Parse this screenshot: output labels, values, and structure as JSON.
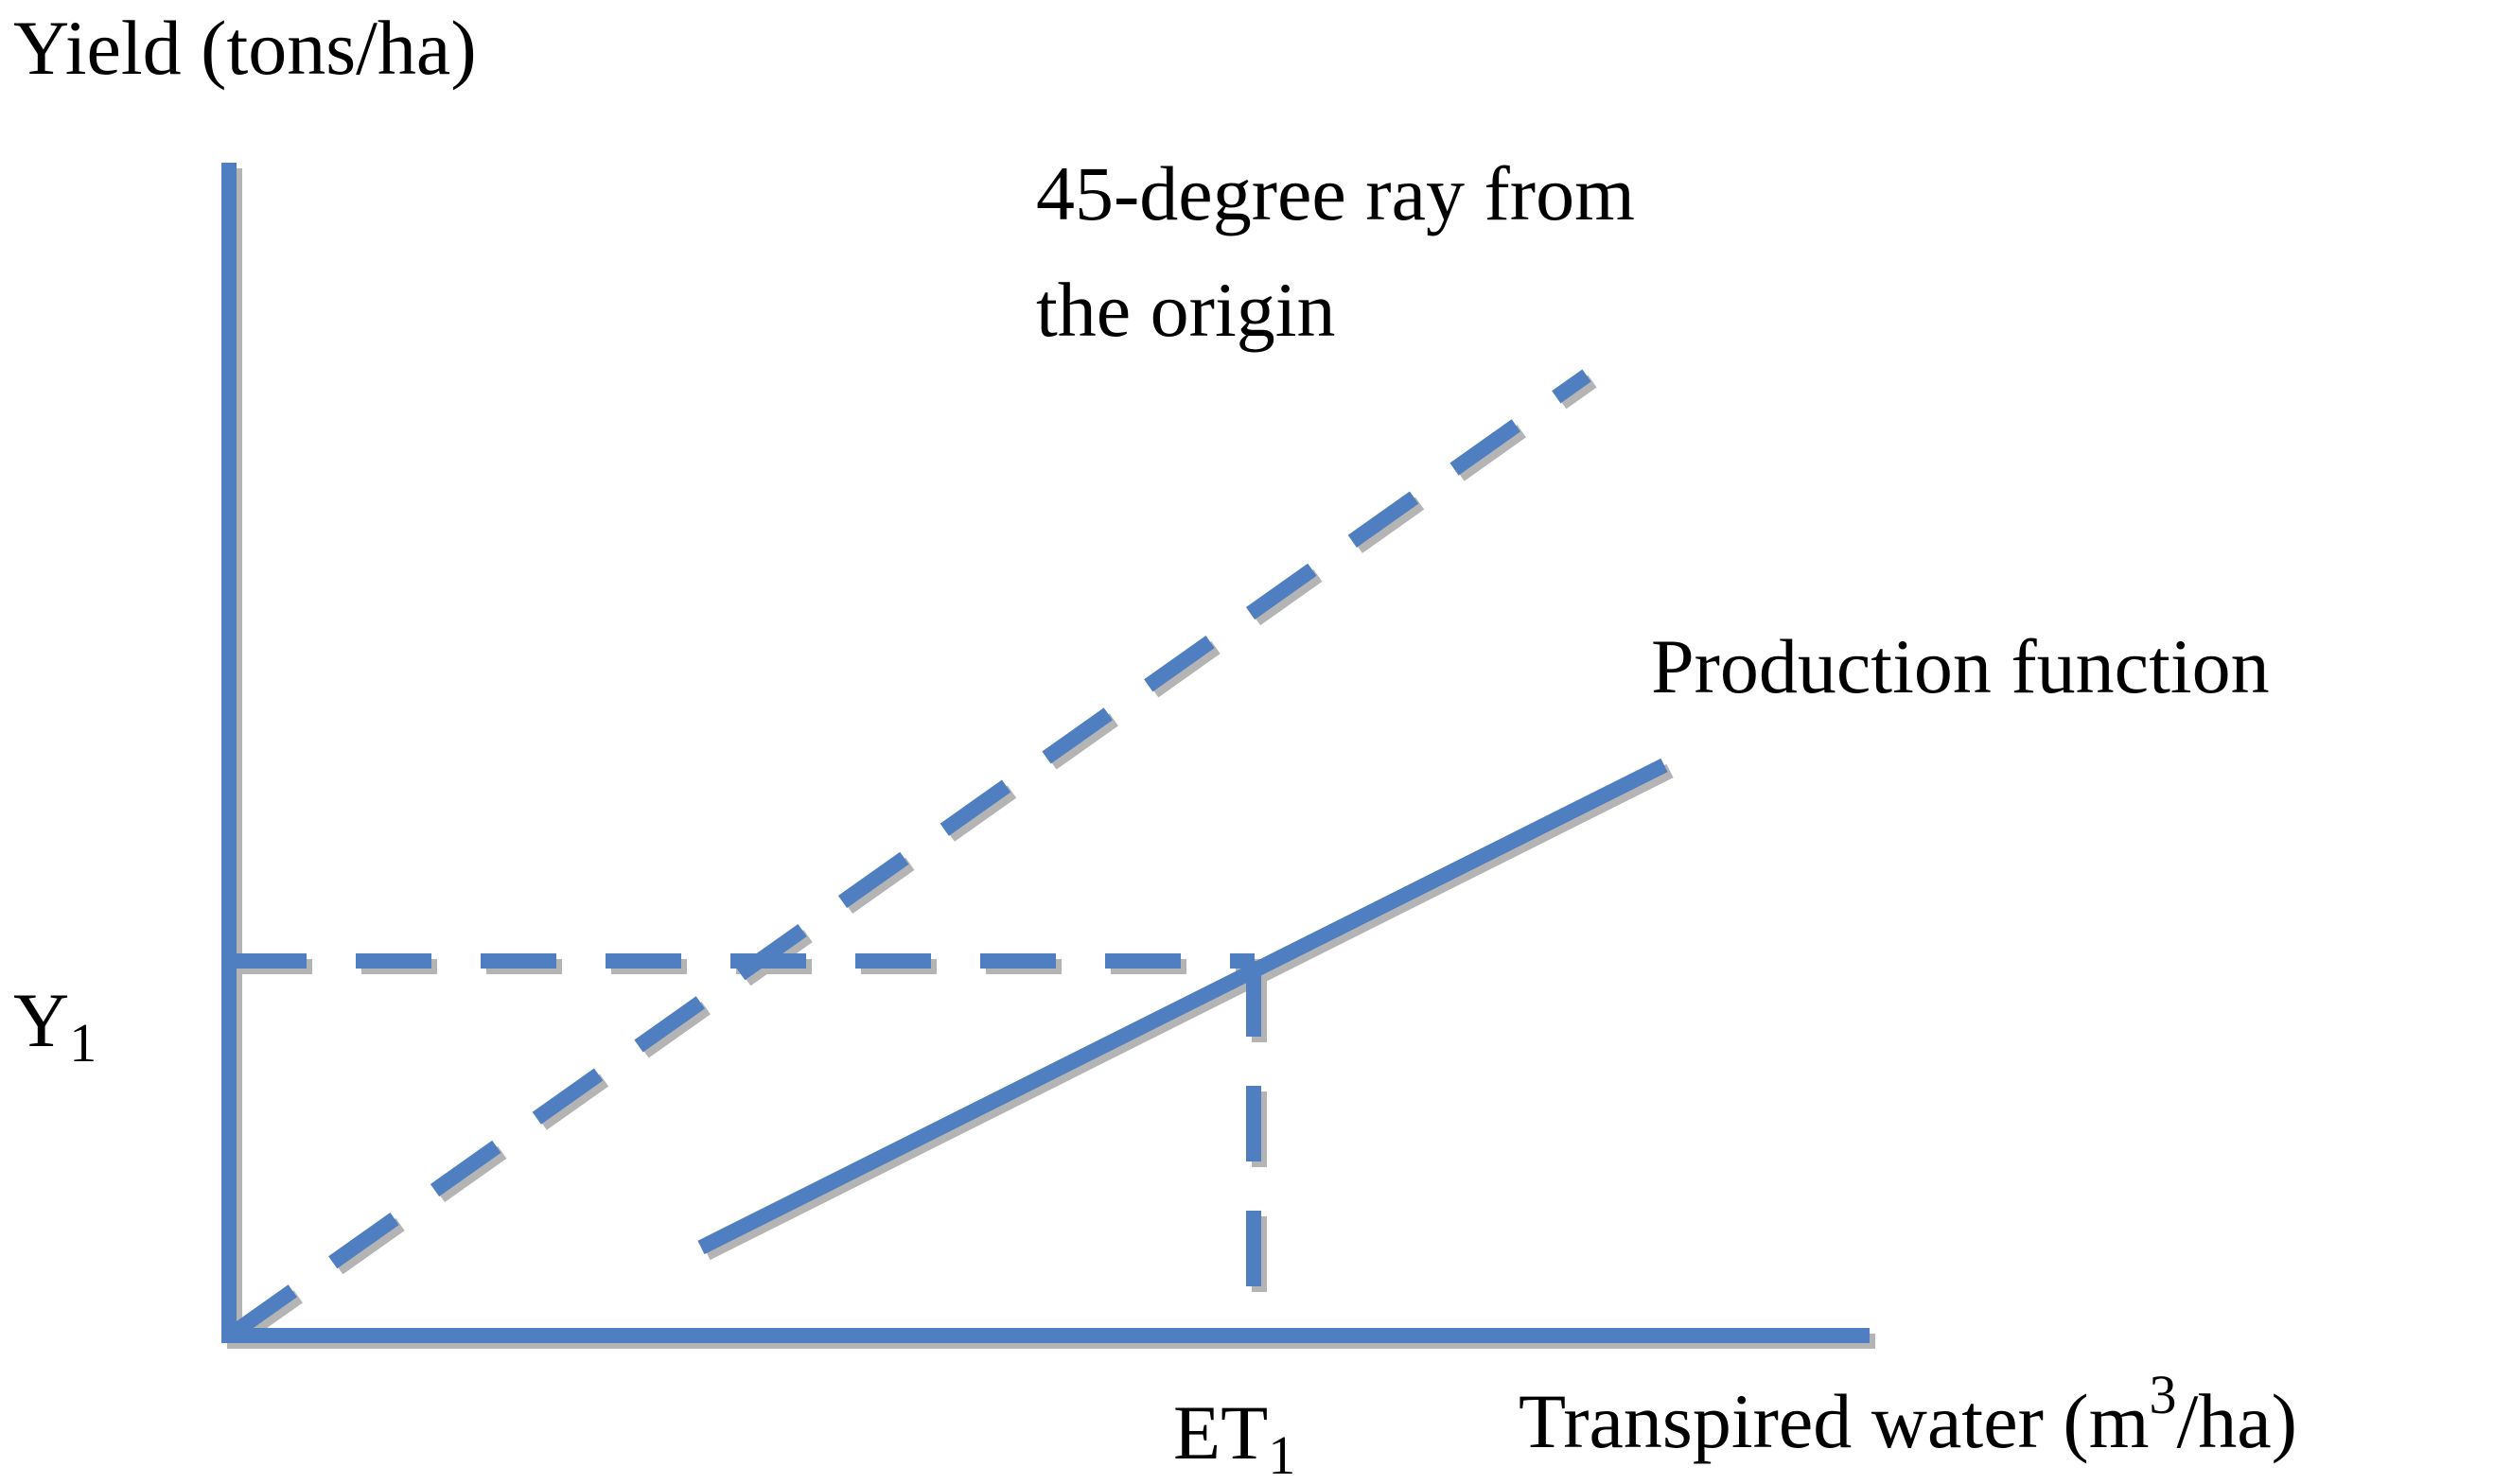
{
  "labels": {
    "y_axis": "Yield (tons/ha)",
    "x_axis_prefix": "Transpired water (m",
    "x_axis_superscript": "3",
    "x_axis_suffix": "/ha)",
    "ray_line1": "45-degree ray from",
    "ray_line2": "the origin",
    "production_function": "Production function",
    "y1_base": "Y",
    "y1_sub": "1",
    "et1_base": "ET",
    "et1_sub": "1"
  },
  "colors": {
    "line": "#4f7fc0",
    "shadow": "#b4b4b4",
    "text": "#000000"
  }
}
